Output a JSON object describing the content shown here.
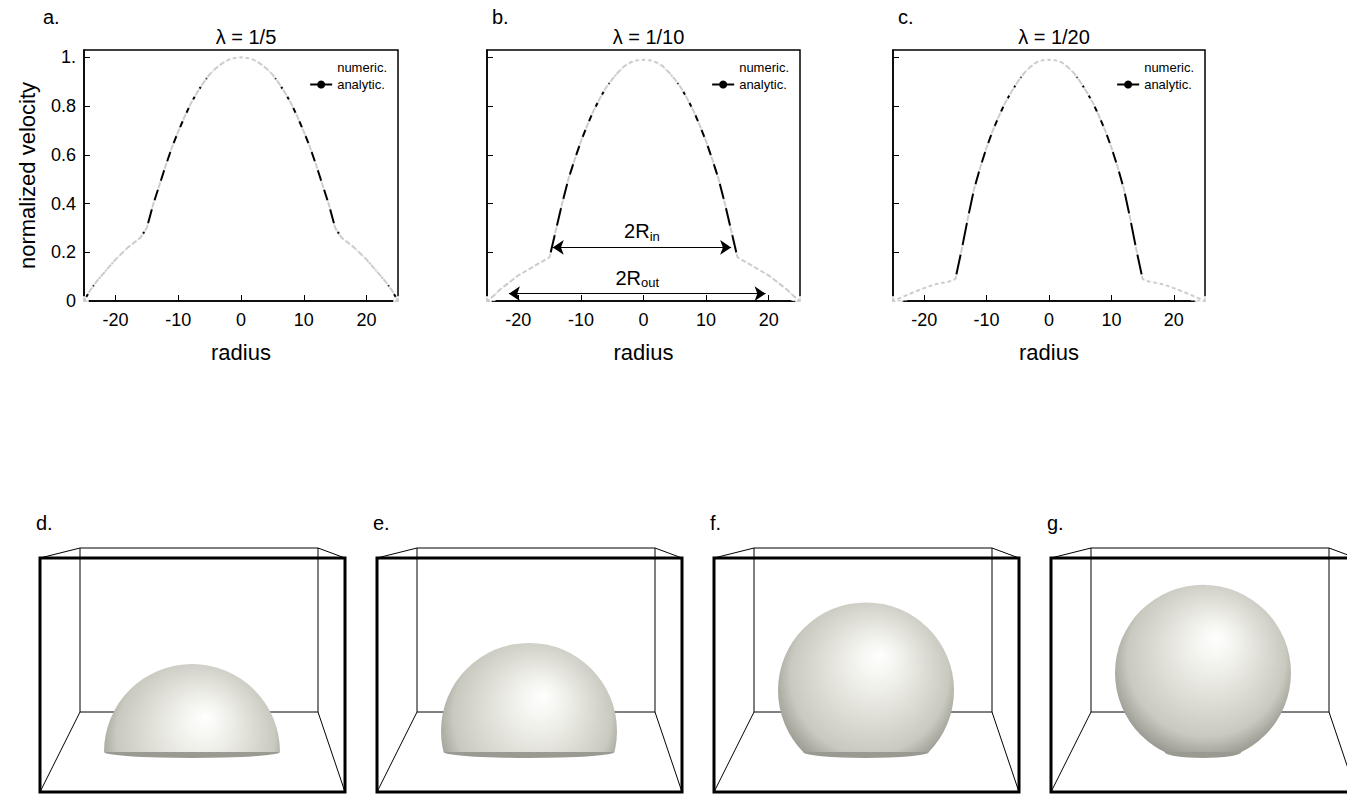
{
  "chart_data": [
    {
      "type": "line",
      "panel": "a.",
      "title": "λ = 1/5",
      "x_label": "radius",
      "y_label": "normalized velocity",
      "x": [
        -25,
        -24,
        -23,
        -22,
        -21,
        -20,
        -19,
        -18,
        -17,
        -16,
        -15,
        -14,
        -13,
        -12,
        -11,
        -10,
        -9,
        -8,
        -7,
        -6,
        -5,
        -4,
        -3,
        -2,
        -1,
        0,
        1,
        2,
        3,
        4,
        5,
        6,
        7,
        8,
        9,
        10,
        11,
        12,
        13,
        14,
        15,
        16,
        17,
        18,
        19,
        20,
        21,
        22,
        23,
        24,
        25
      ],
      "series": [
        {
          "name": "numeric.",
          "type": "scatter",
          "color": "#000000",
          "marker": "circle",
          "values": [
            0,
            0.045,
            0.08,
            0.11,
            0.14,
            0.17,
            0.195,
            0.22,
            0.24,
            0.26,
            0.3,
            0.395,
            0.475,
            0.555,
            0.63,
            0.695,
            0.755,
            0.81,
            0.855,
            0.895,
            0.93,
            0.955,
            0.975,
            0.99,
            0.997,
            1.0,
            0.997,
            0.99,
            0.975,
            0.955,
            0.93,
            0.895,
            0.855,
            0.81,
            0.755,
            0.695,
            0.63,
            0.555,
            0.475,
            0.395,
            0.3,
            0.26,
            0.24,
            0.22,
            0.195,
            0.17,
            0.14,
            0.11,
            0.08,
            0.045,
            0
          ]
        },
        {
          "name": "analytic.",
          "type": "line",
          "color": "#000000",
          "line_style": "solid",
          "values": [
            0,
            0.045,
            0.08,
            0.11,
            0.14,
            0.17,
            0.195,
            0.22,
            0.24,
            0.26,
            0.3,
            0.395,
            0.475,
            0.555,
            0.63,
            0.695,
            0.755,
            0.81,
            0.855,
            0.895,
            0.93,
            0.955,
            0.975,
            0.99,
            0.997,
            1.0,
            0.997,
            0.99,
            0.975,
            0.955,
            0.93,
            0.895,
            0.855,
            0.81,
            0.755,
            0.695,
            0.63,
            0.555,
            0.475,
            0.395,
            0.3,
            0.26,
            0.24,
            0.22,
            0.195,
            0.17,
            0.14,
            0.11,
            0.08,
            0.045,
            0
          ]
        }
      ],
      "xlim": [
        -25,
        25
      ],
      "xticks": [
        -20,
        -10,
        0,
        10,
        20
      ],
      "ylim": [
        0,
        1.03
      ],
      "yticks": [
        0,
        0.2,
        0.4,
        0.6,
        0.8,
        {
          "value": 1,
          "label": "1."
        }
      ],
      "grid": false,
      "legend": "upper right"
    },
    {
      "type": "line",
      "panel": "b.",
      "title": "λ = 1/10",
      "x_label": "radius",
      "x": [
        -25,
        -24,
        -23,
        -22,
        -21,
        -20,
        -19,
        -18,
        -17,
        -16,
        -15,
        -14,
        -13,
        -12,
        -11,
        -10,
        -9,
        -8,
        -7,
        -6,
        -5,
        -4,
        -3,
        -2,
        -1,
        0,
        1,
        2,
        3,
        4,
        5,
        6,
        7,
        8,
        9,
        10,
        11,
        12,
        13,
        14,
        15,
        16,
        17,
        18,
        19,
        20,
        21,
        22,
        23,
        24,
        25
      ],
      "series": [
        {
          "name": "numeric.",
          "type": "scatter",
          "color": "#000000",
          "marker": "circle",
          "values": [
            0,
            0.02,
            0.045,
            0.065,
            0.085,
            0.105,
            0.12,
            0.135,
            0.15,
            0.165,
            0.18,
            0.29,
            0.4,
            0.5,
            0.58,
            0.655,
            0.72,
            0.78,
            0.83,
            0.875,
            0.91,
            0.94,
            0.965,
            0.98,
            0.988,
            0.99,
            0.988,
            0.98,
            0.965,
            0.94,
            0.91,
            0.875,
            0.83,
            0.78,
            0.72,
            0.655,
            0.58,
            0.5,
            0.4,
            0.29,
            0.18,
            0.165,
            0.15,
            0.135,
            0.12,
            0.105,
            0.085,
            0.065,
            0.045,
            0.02,
            0
          ]
        },
        {
          "name": "analytic.",
          "type": "line",
          "color": "#000000",
          "line_style": "solid",
          "values": [
            0,
            0.02,
            0.045,
            0.065,
            0.085,
            0.105,
            0.12,
            0.135,
            0.15,
            0.165,
            0.18,
            0.29,
            0.4,
            0.5,
            0.58,
            0.655,
            0.72,
            0.78,
            0.83,
            0.875,
            0.91,
            0.94,
            0.965,
            0.98,
            0.988,
            0.99,
            0.988,
            0.98,
            0.965,
            0.94,
            0.91,
            0.875,
            0.83,
            0.78,
            0.72,
            0.655,
            0.58,
            0.5,
            0.4,
            0.29,
            0.18,
            0.165,
            0.15,
            0.135,
            0.12,
            0.105,
            0.085,
            0.065,
            0.045,
            0.02,
            0
          ]
        }
      ],
      "annotations": [
        {
          "text": "2R",
          "subscript": "in",
          "x": [
            -14.5,
            14
          ],
          "y": 0.22
        },
        {
          "text": "2R",
          "subscript": "out",
          "x": [
            -21.5,
            19.5
          ],
          "y": 0.03
        }
      ],
      "xlim": [
        -25,
        25
      ],
      "xticks": [
        -20,
        -10,
        0,
        10,
        20
      ],
      "ylim": [
        0,
        1.03
      ],
      "yticks": [
        0,
        0.2,
        0.4,
        0.6,
        0.8,
        1
      ],
      "tick_labels": "x",
      "grid": false,
      "legend": "upper right"
    },
    {
      "type": "line",
      "panel": "c.",
      "title": "λ = 1/20",
      "x_label": "radius",
      "x": [
        -25,
        -24,
        -23,
        -22,
        -21,
        -20,
        -19,
        -18,
        -17,
        -16,
        -15,
        -14,
        -13,
        -12,
        -11,
        -10,
        -9,
        -8,
        -7,
        -6,
        -5,
        -4,
        -3,
        -2,
        -1,
        0,
        1,
        2,
        3,
        4,
        5,
        6,
        7,
        8,
        9,
        10,
        11,
        12,
        13,
        14,
        15,
        16,
        17,
        18,
        19,
        20,
        21,
        22,
        23,
        24,
        25
      ],
      "series": [
        {
          "name": "numeric.",
          "type": "scatter",
          "color": "#000000",
          "marker": "circle",
          "values": [
            0,
            0.011,
            0.022,
            0.033,
            0.043,
            0.053,
            0.062,
            0.07,
            0.075,
            0.08,
            0.09,
            0.21,
            0.34,
            0.46,
            0.55,
            0.63,
            0.7,
            0.76,
            0.815,
            0.86,
            0.9,
            0.935,
            0.96,
            0.98,
            0.988,
            0.99,
            0.988,
            0.98,
            0.96,
            0.935,
            0.9,
            0.86,
            0.815,
            0.76,
            0.7,
            0.63,
            0.55,
            0.46,
            0.34,
            0.21,
            0.09,
            0.08,
            0.075,
            0.07,
            0.062,
            0.053,
            0.043,
            0.033,
            0.022,
            0.011,
            0
          ]
        },
        {
          "name": "analytic.",
          "type": "line",
          "color": "#000000",
          "line_style": "solid",
          "values": [
            0,
            0.011,
            0.022,
            0.033,
            0.043,
            0.053,
            0.062,
            0.07,
            0.075,
            0.08,
            0.09,
            0.21,
            0.34,
            0.46,
            0.55,
            0.63,
            0.7,
            0.76,
            0.815,
            0.86,
            0.9,
            0.935,
            0.96,
            0.98,
            0.988,
            0.99,
            0.988,
            0.98,
            0.96,
            0.935,
            0.9,
            0.86,
            0.815,
            0.76,
            0.7,
            0.63,
            0.55,
            0.46,
            0.34,
            0.21,
            0.09,
            0.08,
            0.075,
            0.07,
            0.062,
            0.053,
            0.043,
            0.033,
            0.022,
            0.011,
            0
          ]
        }
      ],
      "xlim": [
        -25,
        25
      ],
      "xticks": [
        -20,
        -10,
        0,
        10,
        20
      ],
      "ylim": [
        0,
        1.03
      ],
      "yticks": [
        0,
        0.2,
        0.4,
        0.6,
        0.8,
        1
      ],
      "tick_labels": "x",
      "grid": false,
      "legend": "upper right"
    }
  ],
  "panels": [
    "d.",
    "e.",
    "f.",
    "g."
  ]
}
